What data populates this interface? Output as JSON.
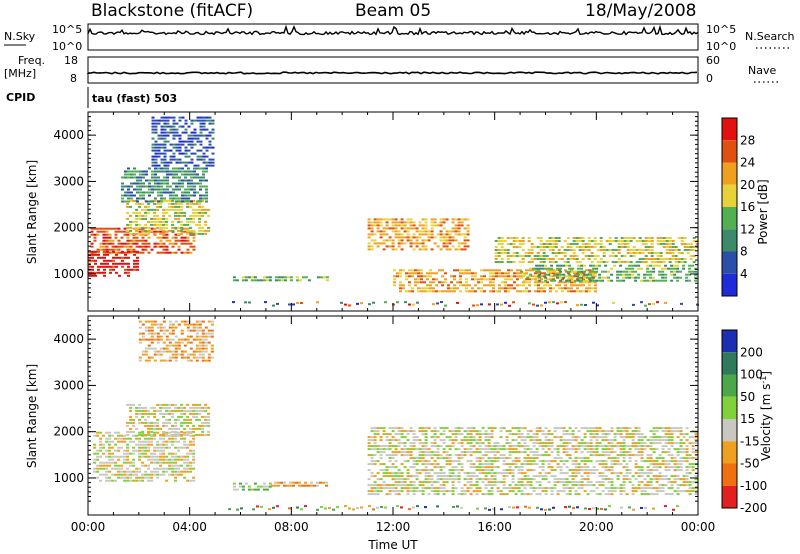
{
  "header": {
    "station": "Blackstone (fitACF)",
    "beam": "Beam 05",
    "date": "18/May/2008"
  },
  "strip_panels": {
    "nsky_label": "N.Sky",
    "nsearch_label": "N.Search",
    "nsky_ticks": [
      "10^5",
      "10^0"
    ],
    "nsearch_ticks": [
      "10^5",
      "10^0"
    ],
    "freq_label_1": "Freq.",
    "freq_label_2": "[MHz]",
    "freq_ticks": [
      "18",
      "8"
    ],
    "nave_label": "Nave",
    "nave_ticks": [
      "60",
      "0"
    ],
    "cpid_label": "CPID",
    "cpid_value": "tau (fast) 503"
  },
  "chart_data": [
    {
      "type": "heatmap",
      "name": "power",
      "ylabel": "Slant Range [km]",
      "yticks": [
        "1000",
        "2000",
        "3000",
        "4000"
      ],
      "ylim": [
        200,
        4500
      ],
      "xlim_hours": [
        0,
        24
      ],
      "colorbar_label": "Power [dB]",
      "colorbar_ticks": [
        "4",
        "8",
        "12",
        "16",
        "20",
        "24",
        "28"
      ],
      "colors": [
        "#1e2bd6",
        "#2b4fa8",
        "#3d8a6a",
        "#52b050",
        "#e8d23a",
        "#f0a020",
        "#e05010",
        "#e31010"
      ],
      "bands": [
        {
          "t0": 0.1,
          "t1": 4.2,
          "r0": 1400,
          "r1": 2000,
          "level": 6
        },
        {
          "t0": 0.0,
          "t1": 2.0,
          "r0": 900,
          "r1": 1500,
          "level": 7
        },
        {
          "t0": 1.5,
          "t1": 4.8,
          "r0": 1800,
          "r1": 2600,
          "level": 4
        },
        {
          "t0": 1.3,
          "t1": 4.7,
          "r0": 2500,
          "r1": 3300,
          "level": 2
        },
        {
          "t0": 2.5,
          "t1": 5.0,
          "r0": 3300,
          "r1": 4400,
          "level": 1
        },
        {
          "t0": 5.7,
          "t1": 9.5,
          "r0": 800,
          "r1": 950,
          "level": 3
        },
        {
          "t0": 11.0,
          "t1": 15.0,
          "r0": 1500,
          "r1": 2200,
          "level": 5
        },
        {
          "t0": 12.0,
          "t1": 20.0,
          "r0": 600,
          "r1": 1100,
          "level": 5
        },
        {
          "t0": 16.0,
          "t1": 24.0,
          "r0": 1200,
          "r1": 1800,
          "level": 4
        },
        {
          "t0": 17.0,
          "t1": 24.0,
          "r0": 800,
          "r1": 1200,
          "level": 3
        }
      ]
    },
    {
      "type": "heatmap",
      "name": "velocity",
      "ylabel": "Slant Range [km]",
      "yticks": [
        "1000",
        "2000",
        "3000",
        "4000"
      ],
      "ylim": [
        200,
        4500
      ],
      "xlim_hours": [
        0,
        24
      ],
      "xticks": [
        "00:00",
        "04:00",
        "08:00",
        "12:00",
        "16:00",
        "20:00",
        "00:00"
      ],
      "xlabel": "Time UT",
      "colorbar_label": "Velocity [m s^-1]",
      "colorbar_ticks": [
        "200",
        "100",
        "50",
        "15",
        "-15",
        "-50",
        "-100",
        "-200"
      ],
      "colors": [
        "#1b2fb0",
        "#2e7a5a",
        "#4aa84a",
        "#7fd23a",
        "#c8c8c0",
        "#f0a020",
        "#f07010",
        "#e32020"
      ],
      "bands": [
        {
          "t0": 0.2,
          "t1": 4.2,
          "r0": 900,
          "r1": 2000,
          "level": 4
        },
        {
          "t0": 1.5,
          "t1": 4.8,
          "r0": 1900,
          "r1": 2600,
          "level": 4
        },
        {
          "t0": 2.0,
          "t1": 5.0,
          "r0": 3500,
          "r1": 4400,
          "level": 5
        },
        {
          "t0": 5.7,
          "t1": 7.2,
          "r0": 700,
          "r1": 900,
          "level": 3
        },
        {
          "t0": 7.2,
          "t1": 9.5,
          "r0": 800,
          "r1": 920,
          "level": 5
        },
        {
          "t0": 11.0,
          "t1": 24.0,
          "r0": 600,
          "r1": 2100,
          "level": 4
        }
      ]
    }
  ]
}
